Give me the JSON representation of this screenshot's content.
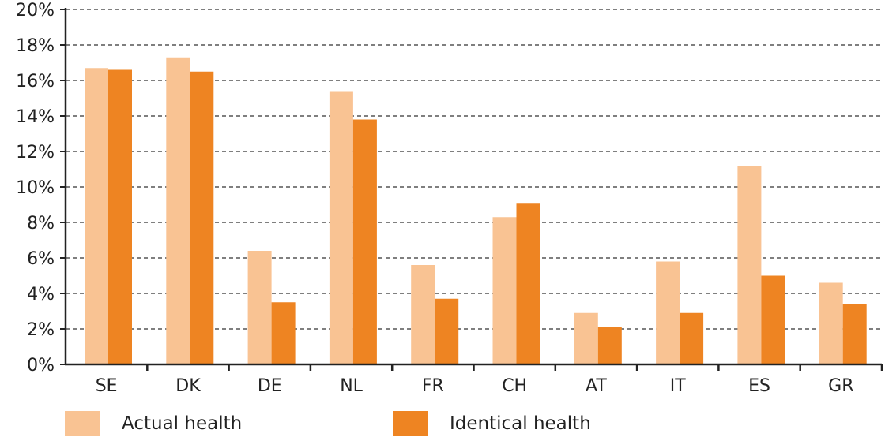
{
  "chart_data": {
    "type": "bar",
    "categories": [
      "SE",
      "DK",
      "DE",
      "NL",
      "FR",
      "CH",
      "AT",
      "IT",
      "ES",
      "GR"
    ],
    "series": [
      {
        "name": "Actual health",
        "color": "#f9c393",
        "values": [
          16.7,
          17.3,
          6.4,
          15.4,
          5.6,
          8.3,
          2.9,
          5.8,
          11.2,
          4.6
        ]
      },
      {
        "name": "Identical health",
        "color": "#ee8422",
        "values": [
          16.6,
          16.5,
          3.5,
          13.8,
          3.7,
          9.1,
          2.1,
          2.9,
          5.0,
          3.4
        ]
      }
    ],
    "ylim": [
      0,
      20
    ],
    "yticks": [
      "0%",
      "2%",
      "4%",
      "6%",
      "8%",
      "10%",
      "12%",
      "14%",
      "16%",
      "18%",
      "20%"
    ],
    "grid": true,
    "legend_position": "bottom"
  }
}
